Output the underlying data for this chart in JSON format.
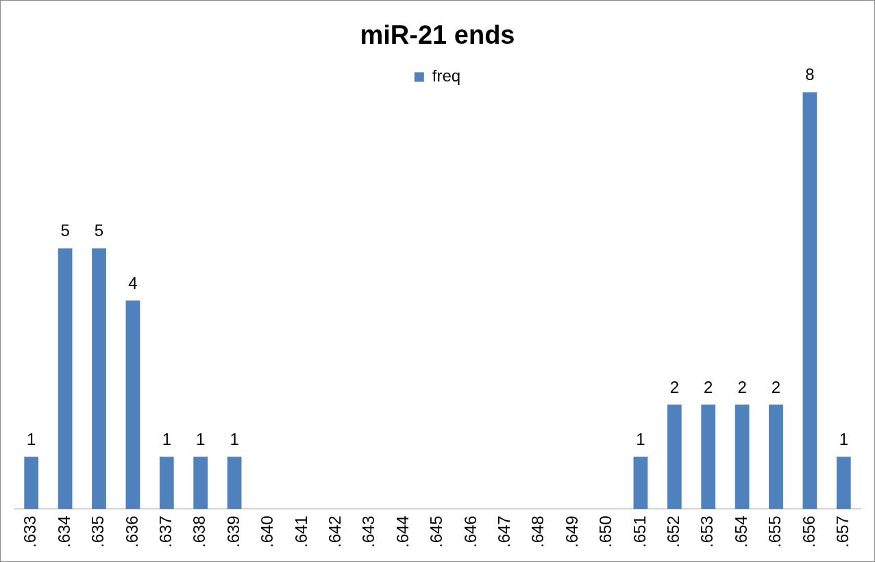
{
  "chart_data": {
    "type": "bar",
    "title": "miR-21 ends",
    "categories": [
      ".633",
      ".634",
      ".635",
      ".636",
      ".637",
      ".638",
      ".639",
      ".640",
      ".641",
      ".642",
      ".643",
      ".644",
      ".645",
      ".646",
      ".647",
      ".648",
      ".649",
      ".650",
      ".651",
      ".652",
      ".653",
      ".654",
      ".655",
      ".656",
      ".657"
    ],
    "series": [
      {
        "name": "freq",
        "color": "#4f81bd",
        "values": [
          1,
          5,
          5,
          4,
          1,
          1,
          1,
          0,
          0,
          0,
          0,
          0,
          0,
          0,
          0,
          0,
          0,
          0,
          1,
          2,
          2,
          2,
          2,
          8,
          1
        ],
        "value_labels": [
          "1",
          "5",
          "5",
          "4",
          "1",
          "1",
          "1",
          null,
          null,
          null,
          null,
          null,
          null,
          null,
          null,
          null,
          null,
          null,
          "1",
          "2",
          "2",
          "2",
          "2",
          "8",
          "1"
        ]
      }
    ],
    "legend": "top",
    "grid": false
  }
}
